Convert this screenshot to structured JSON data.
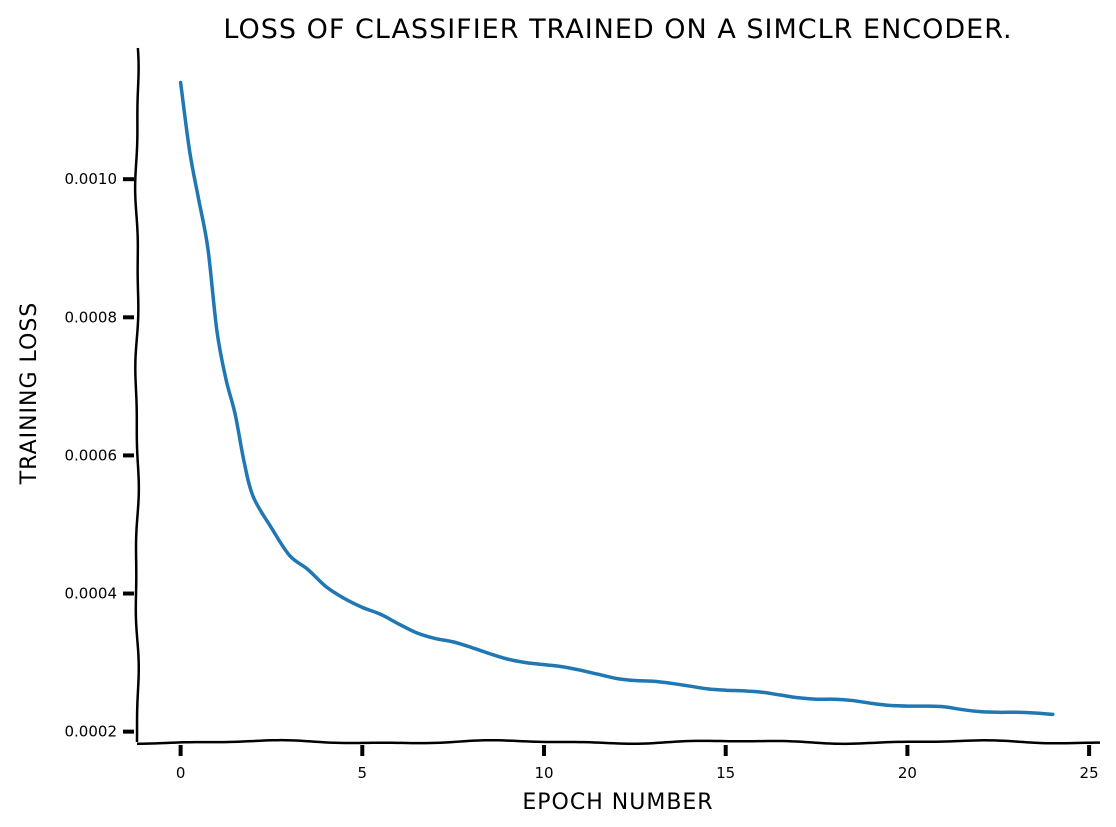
{
  "chart_data": {
    "type": "line",
    "title": "LOSS OF CLASSIFIER TRAINED ON A SIMCLR ENCODER.",
    "xlabel": "EPOCH NUMBER",
    "ylabel": "TRAINING LOSS",
    "xlim": [
      -1.2,
      25.3
    ],
    "ylim": [
      0.000185,
      0.00119
    ],
    "x_ticks": [
      0,
      5,
      10,
      15,
      20,
      25
    ],
    "x_tick_labels": [
      "0",
      "5",
      "10",
      "15",
      "20",
      "25"
    ],
    "y_ticks": [
      0.0002,
      0.0004,
      0.0006,
      0.0008,
      0.001
    ],
    "y_tick_labels": [
      "0.0002",
      "0.0004",
      "0.0006",
      "0.0008",
      "0.0010"
    ],
    "grid": false,
    "series": [
      {
        "color": "#1f77b4",
        "x": [
          0,
          0.25,
          0.5,
          0.75,
          1,
          1.25,
          1.5,
          1.75,
          2,
          2.5,
          3,
          3.5,
          4,
          4.5,
          5,
          5.5,
          6,
          6.5,
          7,
          7.5,
          8,
          8.5,
          9,
          9.5,
          10,
          10.5,
          11,
          11.5,
          12,
          12.5,
          13,
          13.5,
          14,
          14.5,
          15,
          15.5,
          16,
          16.5,
          17,
          17.5,
          18,
          18.5,
          19,
          19.5,
          20,
          20.5,
          21,
          21.5,
          22,
          22.5,
          23,
          23.5,
          24
        ],
        "values": [
          0.00114,
          0.00104,
          0.00097,
          0.0009,
          0.00078,
          0.00071,
          0.00066,
          0.00059,
          0.00054,
          0.000495,
          0.000455,
          0.000435,
          0.00041,
          0.000393,
          0.00038,
          0.00037,
          0.000356,
          0.000343,
          0.000335,
          0.00033,
          0.000322,
          0.000313,
          0.000305,
          0.0003,
          0.000297,
          0.000294,
          0.000289,
          0.000283,
          0.000277,
          0.000274,
          0.000273,
          0.00027,
          0.000266,
          0.000262,
          0.00026,
          0.000259,
          0.000257,
          0.000253,
          0.000249,
          0.000247,
          0.000247,
          0.000245,
          0.000241,
          0.000238,
          0.000237,
          0.000237,
          0.000236,
          0.000232,
          0.000229,
          0.000228,
          0.000228,
          0.000227,
          0.000225
        ]
      }
    ]
  }
}
